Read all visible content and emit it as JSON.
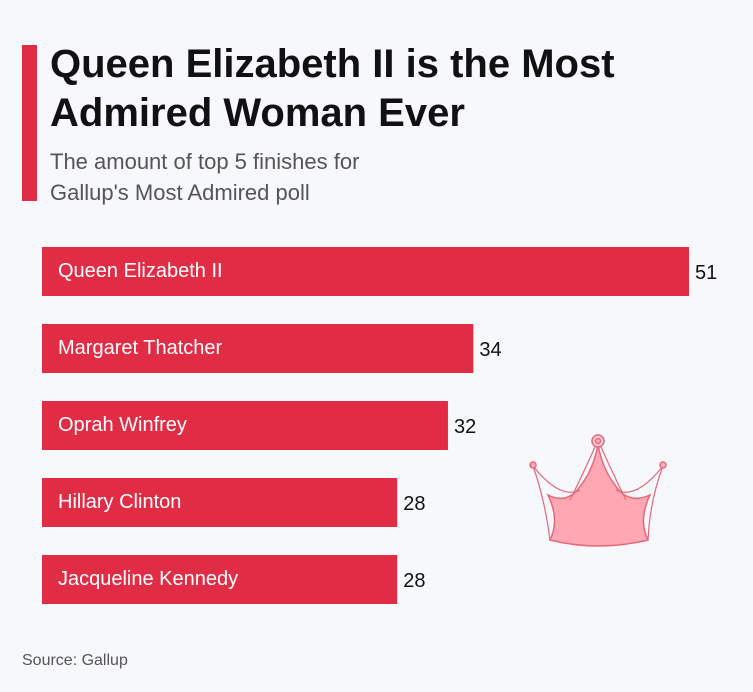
{
  "chart_data": {
    "type": "bar",
    "orientation": "horizontal",
    "title": "Queen Elizabeth II is the Most Admired Woman Ever",
    "subtitle": "The amount of top 5 finishes for Gallup's Most Admired poll",
    "source": "Source: Gallup",
    "categories": [
      "Queen Elizabeth II",
      "Margaret Thatcher",
      "Oprah Winfrey",
      "Hillary Clinton",
      "Jacqueline Kennedy"
    ],
    "values": [
      51,
      34,
      32,
      28,
      28
    ],
    "color": "#e02d45"
  }
}
